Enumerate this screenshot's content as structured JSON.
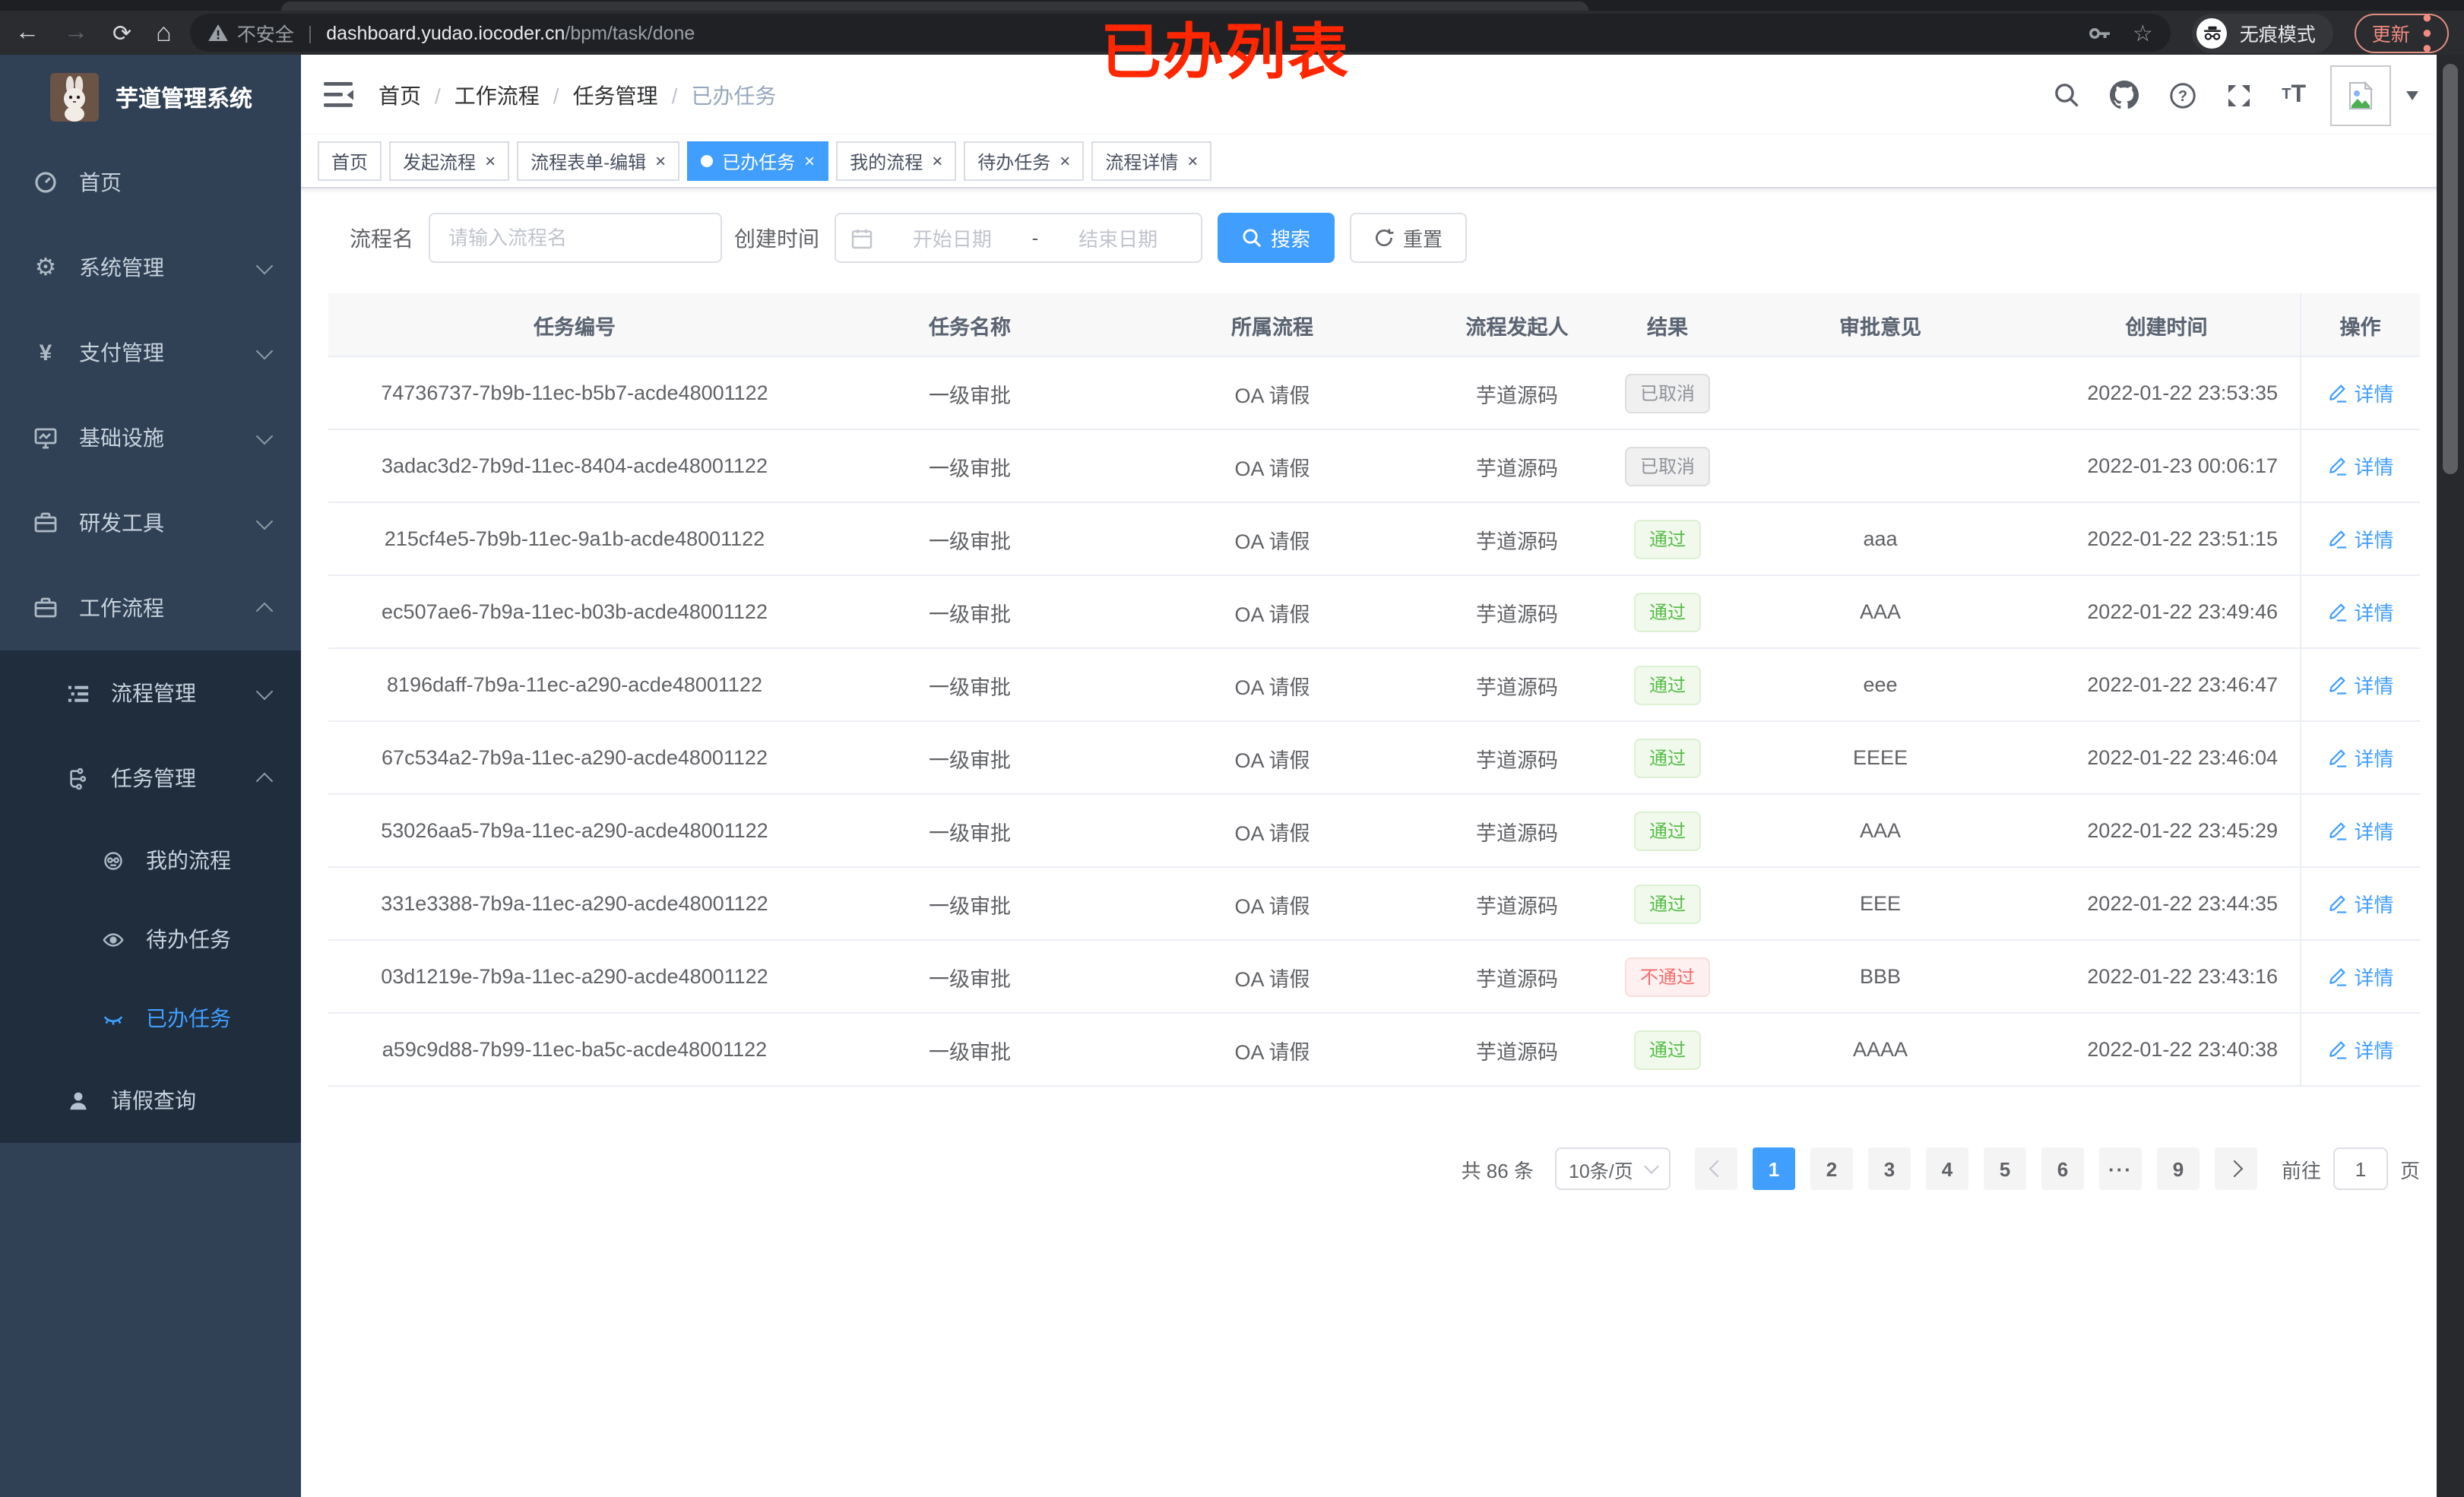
{
  "colors": {
    "accent": "#409eff",
    "sidebar_bg": "#304156",
    "submenu_bg": "#1f2d3d",
    "success": "#55bd47",
    "danger": "#f56c6c",
    "info": "#8f9399",
    "annotation_red": "#ff2600"
  },
  "browser": {
    "security_label": "不安全",
    "url_host": "dashboard.yudao.iocoder.cn",
    "url_path": "/bpm/task/done",
    "incognito_label": "无痕模式",
    "update_label": "更新"
  },
  "annotation": {
    "text": "已办列表"
  },
  "sidebar": {
    "app_title": "芋道管理系统",
    "menu": [
      {
        "label": "首页"
      },
      {
        "label": "系统管理"
      },
      {
        "label": "支付管理"
      },
      {
        "label": "基础设施"
      },
      {
        "label": "研发工具"
      },
      {
        "label": "工作流程"
      }
    ],
    "submenu": {
      "process_mgmt": "流程管理",
      "task_mgmt": "任务管理",
      "my_process": "我的流程",
      "todo_tasks": "待办任务",
      "done_tasks": "已办任务",
      "leave_query": "请假查询"
    }
  },
  "navbar": {
    "breadcrumb": [
      "首页",
      "工作流程",
      "任务管理",
      "已办任务"
    ]
  },
  "tabs": [
    {
      "label": "首页",
      "closable": false,
      "active": false
    },
    {
      "label": "发起流程",
      "closable": true,
      "active": false
    },
    {
      "label": "流程表单-编辑",
      "closable": true,
      "active": false
    },
    {
      "label": "已办任务",
      "closable": true,
      "active": true
    },
    {
      "label": "我的流程",
      "closable": true,
      "active": false
    },
    {
      "label": "待办任务",
      "closable": true,
      "active": false
    },
    {
      "label": "流程详情",
      "closable": true,
      "active": false
    }
  ],
  "filter": {
    "name_label": "流程名",
    "name_placeholder": "请输入流程名",
    "time_label": "创建时间",
    "start_placeholder": "开始日期",
    "separator": "-",
    "end_placeholder": "结束日期",
    "search_label": "搜索",
    "reset_label": "重置"
  },
  "table": {
    "columns": [
      "任务编号",
      "任务名称",
      "所属流程",
      "流程发起人",
      "结果",
      "审批意见",
      "创建时间",
      "操作"
    ],
    "detail_label": "详情",
    "rows": [
      {
        "id": "74736737-7b9b-11ec-b5b7-acde48001122",
        "name": "一级审批",
        "process": "OA 请假",
        "starter": "芋道源码",
        "result": "已取消",
        "result_type": "info",
        "comment": "",
        "created": "2022-01-22 23:53:35"
      },
      {
        "id": "3adac3d2-7b9d-11ec-8404-acde48001122",
        "name": "一级审批",
        "process": "OA 请假",
        "starter": "芋道源码",
        "result": "已取消",
        "result_type": "info",
        "comment": "",
        "created": "2022-01-23 00:06:17"
      },
      {
        "id": "215cf4e5-7b9b-11ec-9a1b-acde48001122",
        "name": "一级审批",
        "process": "OA 请假",
        "starter": "芋道源码",
        "result": "通过",
        "result_type": "success",
        "comment": "aaa",
        "created": "2022-01-22 23:51:15"
      },
      {
        "id": "ec507ae6-7b9a-11ec-b03b-acde48001122",
        "name": "一级审批",
        "process": "OA 请假",
        "starter": "芋道源码",
        "result": "通过",
        "result_type": "success",
        "comment": "AAA",
        "created": "2022-01-22 23:49:46"
      },
      {
        "id": "8196daff-7b9a-11ec-a290-acde48001122",
        "name": "一级审批",
        "process": "OA 请假",
        "starter": "芋道源码",
        "result": "通过",
        "result_type": "success",
        "comment": "eee",
        "created": "2022-01-22 23:46:47"
      },
      {
        "id": "67c534a2-7b9a-11ec-a290-acde48001122",
        "name": "一级审批",
        "process": "OA 请假",
        "starter": "芋道源码",
        "result": "通过",
        "result_type": "success",
        "comment": "EEEE",
        "created": "2022-01-22 23:46:04"
      },
      {
        "id": "53026aa5-7b9a-11ec-a290-acde48001122",
        "name": "一级审批",
        "process": "OA 请假",
        "starter": "芋道源码",
        "result": "通过",
        "result_type": "success",
        "comment": "AAA",
        "created": "2022-01-22 23:45:29"
      },
      {
        "id": "331e3388-7b9a-11ec-a290-acde48001122",
        "name": "一级审批",
        "process": "OA 请假",
        "starter": "芋道源码",
        "result": "通过",
        "result_type": "success",
        "comment": "EEE",
        "created": "2022-01-22 23:44:35"
      },
      {
        "id": "03d1219e-7b9a-11ec-a290-acde48001122",
        "name": "一级审批",
        "process": "OA 请假",
        "starter": "芋道源码",
        "result": "不通过",
        "result_type": "danger",
        "comment": "BBB",
        "created": "2022-01-22 23:43:16"
      },
      {
        "id": "a59c9d88-7b99-11ec-ba5c-acde48001122",
        "name": "一级审批",
        "process": "OA 请假",
        "starter": "芋道源码",
        "result": "通过",
        "result_type": "success",
        "comment": "AAAA",
        "created": "2022-01-22 23:40:38"
      }
    ]
  },
  "pagination": {
    "total_label": "共 86 条",
    "page_size": "10条/页",
    "pages": [
      "1",
      "2",
      "3",
      "4",
      "5",
      "6",
      "···",
      "9"
    ],
    "active_page": "1",
    "goto_label": "前往",
    "goto_value": "1",
    "unit_label": "页"
  }
}
